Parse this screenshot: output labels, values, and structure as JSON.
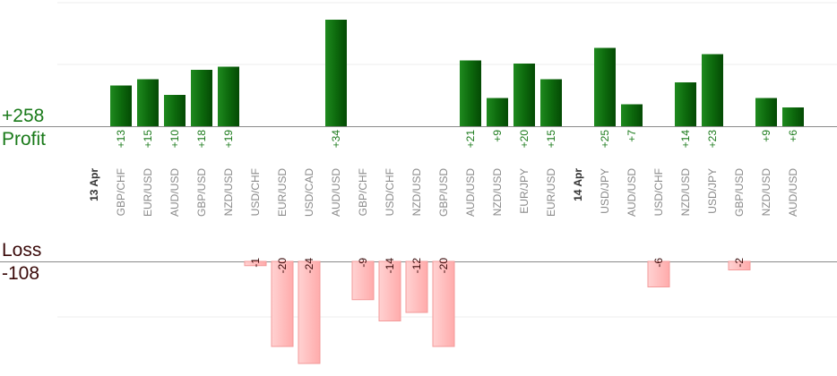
{
  "chart_data": {
    "type": "bar",
    "summary": {
      "profit_total": "+258",
      "profit_label": "Profit",
      "loss_label": "Loss",
      "loss_total": "-108"
    },
    "colors": {
      "profit": "#0b6b0b",
      "loss": "#ffb3b3",
      "profit_text": "#1a7a1a",
      "loss_text": "#3a0a0a"
    },
    "days": [
      {
        "date": "13 Apr",
        "trades": [
          {
            "pair": "GBP/CHF",
            "value": 13
          },
          {
            "pair": "EUR/USD",
            "value": 15
          },
          {
            "pair": "AUD/USD",
            "value": 10
          },
          {
            "pair": "GBP/USD",
            "value": 18
          },
          {
            "pair": "NZD/USD",
            "value": 19
          },
          {
            "pair": "USD/CHF",
            "value": -1
          },
          {
            "pair": "EUR/USD",
            "value": -20
          },
          {
            "pair": "USD/CAD",
            "value": -24
          },
          {
            "pair": "AUD/USD",
            "value": 34
          },
          {
            "pair": "GBP/CHF",
            "value": -9
          },
          {
            "pair": "USD/CHF",
            "value": -14
          },
          {
            "pair": "NZD/USD",
            "value": -12
          },
          {
            "pair": "GBP/USD",
            "value": -20
          },
          {
            "pair": "AUD/USD",
            "value": 21
          },
          {
            "pair": "NZD/USD",
            "value": 9
          },
          {
            "pair": "EUR/JPY",
            "value": 20
          },
          {
            "pair": "EUR/USD",
            "value": 15
          }
        ]
      },
      {
        "date": "14 Apr",
        "trades": [
          {
            "pair": "USD/JPY",
            "value": 25
          },
          {
            "pair": "AUD/USD",
            "value": 7
          },
          {
            "pair": "USD/CHF",
            "value": -6
          },
          {
            "pair": "NZD/USD",
            "value": 14
          },
          {
            "pair": "USD/JPY",
            "value": 23
          },
          {
            "pair": "GBP/USD",
            "value": -2
          },
          {
            "pair": "NZD/USD",
            "value": 9
          },
          {
            "pair": "AUD/USD",
            "value": 6
          }
        ]
      }
    ]
  }
}
